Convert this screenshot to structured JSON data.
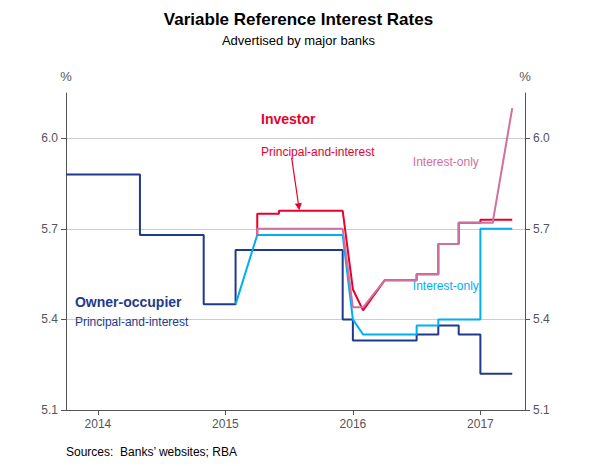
{
  "chart_data": {
    "type": "line",
    "title": "Variable Reference Interest Rates",
    "subtitle": "Advertised by major banks",
    "source": "Sources:  Banks’ websites; RBA",
    "ylabel": "%",
    "y2label": "%",
    "xlim": [
      2013.75,
      2017.35
    ],
    "xticks": [
      2014,
      2015,
      2016,
      2017
    ],
    "ylim": [
      5.1,
      6.15
    ],
    "yticks": [
      5.1,
      5.4,
      5.7,
      {
        "value": 6.0,
        "label": "6.0"
      }
    ],
    "y2lim": [
      5.1,
      6.15
    ],
    "y2ticks": [
      5.1,
      5.4,
      5.7,
      {
        "value": 6.0,
        "label": "6.0"
      }
    ],
    "grid": true,
    "series": [
      {
        "color": "#1F3A8C",
        "x": [
          2013.75,
          2014.33,
          2014.33,
          2014.58,
          2014.58,
          2014.83,
          2014.83,
          2015.08,
          2015.08,
          2015.25,
          2015.25,
          2015.92,
          2015.92,
          2016.0,
          2016.0,
          2016.08,
          2016.08,
          2016.25,
          2016.25,
          2016.5,
          2016.5,
          2016.67,
          2016.67,
          2016.83,
          2016.83,
          2017.0,
          2017.0,
          2017.25
        ],
        "values": [
          5.88,
          5.88,
          5.68,
          5.68,
          5.68,
          5.68,
          5.45,
          5.45,
          5.63,
          5.63,
          5.63,
          5.63,
          5.4,
          5.4,
          5.33,
          5.33,
          5.33,
          5.33,
          5.33,
          5.33,
          5.35,
          5.35,
          5.38,
          5.38,
          5.35,
          5.35,
          5.22,
          5.22
        ]
      },
      {
        "color": "#00AFEF",
        "x": [
          2015.08,
          2015.08,
          2015.25,
          2015.25,
          2015.92,
          2015.92,
          2016.0,
          2016.0,
          2016.08,
          2016.08,
          2016.25,
          2016.25,
          2016.5,
          2016.5,
          2016.67,
          2016.67,
          2016.83,
          2016.83,
          2017.0,
          2017.0,
          2017.25
        ],
        "values": [
          5.45,
          5.45,
          5.68,
          5.68,
          5.68,
          5.68,
          5.4,
          5.4,
          5.35,
          5.35,
          5.35,
          5.35,
          5.35,
          5.38,
          5.38,
          5.4,
          5.4,
          5.4,
          5.4,
          5.7,
          5.7
        ]
      },
      {
        "color": "#E8002D",
        "x": [
          2015.25,
          2015.25,
          2015.42,
          2015.42,
          2015.92,
          2015.92,
          2016.0,
          2016.0,
          2016.08,
          2016.08,
          2016.25,
          2016.25,
          2016.5,
          2016.5,
          2016.67,
          2016.67,
          2016.83,
          2016.83,
          2017.0,
          2017.0,
          2017.25
        ],
        "values": [
          5.68,
          5.75,
          5.75,
          5.76,
          5.76,
          5.76,
          5.5,
          5.5,
          5.43,
          5.43,
          5.53,
          5.53,
          5.53,
          5.55,
          5.55,
          5.65,
          5.65,
          5.72,
          5.72,
          5.73,
          5.73
        ]
      },
      {
        "color": "#D070A0",
        "x": [
          2015.25,
          2015.25,
          2015.42,
          2015.42,
          2015.92,
          2015.92,
          2016.0,
          2016.0,
          2016.08,
          2016.08,
          2016.25,
          2016.25,
          2016.5,
          2016.5,
          2016.67,
          2016.67,
          2016.83,
          2016.83,
          2017.0,
          2017.0,
          2017.1,
          2017.1,
          2017.25
        ],
        "values": [
          5.68,
          5.7,
          5.7,
          5.7,
          5.7,
          5.7,
          5.44,
          5.44,
          5.44,
          5.44,
          5.53,
          5.53,
          5.53,
          5.55,
          5.55,
          5.65,
          5.65,
          5.72,
          5.72,
          5.72,
          5.72,
          5.73,
          6.1
        ]
      }
    ],
    "annotations": [
      {
        "text": "Investor",
        "x": 2015.28,
        "y": 6.04,
        "color": "#E8002D"
      },
      {
        "text": "Principal-and-interest",
        "x": 2015.28,
        "y": 5.975,
        "color": "#E8002D"
      },
      {
        "text": "Interest-only",
        "x": 2016.47,
        "y": 5.92,
        "color": "#D070A0"
      },
      {
        "text": "Owner-occupier",
        "x": 2013.82,
        "y": 5.48,
        "color": "#1F3A8C"
      },
      {
        "text": "Principal-and-interest",
        "x": 2013.82,
        "y": 5.41,
        "color": "#1F3A8C"
      },
      {
        "text": "Interest-only",
        "x": 2016.47,
        "y": 5.51,
        "color": "#00AFEF"
      }
    ]
  }
}
